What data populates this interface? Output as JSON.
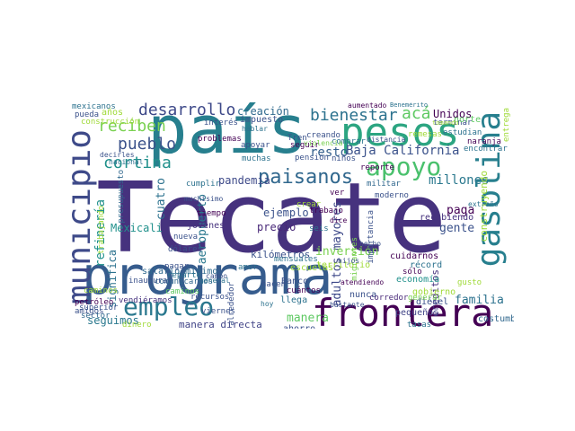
{
  "wordcloud": {
    "palette": {
      "dark_purple": "#440154",
      "indigo": "#46327e",
      "blue": "#365c8d",
      "teal": "#277f8e",
      "cyan": "#1fa187",
      "green": "#4ac16d",
      "light_green": "#a0da39",
      "yellow": "#d3e21b"
    },
    "words": [
      {
        "text": "Tecate",
        "color": "#46327e"
      },
      {
        "text": "programa",
        "color": "#365c8d"
      },
      {
        "text": "país",
        "color": "#277f8e"
      },
      {
        "text": "pesos",
        "color": "#2ca581"
      },
      {
        "text": "frontera",
        "color": "#440154"
      },
      {
        "text": "gasolina",
        "color": "#277f8e"
      },
      {
        "text": "municipio",
        "color": "#3e4a89"
      },
      {
        "text": "empleo",
        "color": "#2a788e"
      },
      {
        "text": "apoyo",
        "color": "#4ac16d"
      },
      {
        "text": "paisanos",
        "color": "#31688e"
      },
      {
        "text": "pueblo",
        "color": "#3b528b"
      },
      {
        "text": "cortina",
        "color": "#21918c"
      },
      {
        "text": "reciben",
        "color": "#7ad151"
      },
      {
        "text": "desarrollo",
        "color": "#3e4989"
      },
      {
        "text": "bienestar",
        "color": "#2c728e"
      },
      {
        "text": "acá",
        "color": "#5ec962"
      },
      {
        "text": "Baja California",
        "color": "#3b528b"
      },
      {
        "text": "resto",
        "color": "#35608d"
      },
      {
        "text": "millones",
        "color": "#2a788e"
      },
      {
        "text": "creación",
        "color": "#306a8e"
      },
      {
        "text": "impuesto",
        "color": "#3b528b"
      },
      {
        "text": "Unidos",
        "color": "#440154"
      },
      {
        "text": "años",
        "color": "#a0da39"
      },
      {
        "text": "pandemia",
        "color": "#3e4a89"
      },
      {
        "text": "refinería",
        "color": "#21918c"
      },
      {
        "text": "cuatro",
        "color": "#2c728e"
      },
      {
        "text": "aeropuerto",
        "color": "#2a788e"
      },
      {
        "text": "ejemplo",
        "color": "#3b528b"
      },
      {
        "text": "precio",
        "color": "#482878"
      },
      {
        "text": "adultos mayores",
        "color": "#3e4989"
      },
      {
        "text": "paga",
        "color": "#440154"
      },
      {
        "text": "gente",
        "color": "#3b528b"
      },
      {
        "text": "construyendo",
        "color": "#a0da39"
      },
      {
        "text": "créditos",
        "color": "#46327e"
      },
      {
        "text": "familia",
        "color": "#2c728e"
      },
      {
        "text": "Mexicali",
        "color": "#21918c"
      },
      {
        "text": "kilómetros",
        "color": "#3b528b"
      },
      {
        "text": "inversión",
        "color": "#7ad151"
      },
      {
        "text": "territorio",
        "color": "#a0da39"
      },
      {
        "text": "seguimos",
        "color": "#2a788e"
      },
      {
        "text": "manera",
        "color": "#5ec962"
      },
      {
        "text": "manera directa",
        "color": "#414487"
      },
      {
        "text": "ahorro",
        "color": "#3b528b"
      },
      {
        "text": "cuidarnos",
        "color": "#440154"
      },
      {
        "text": "récord",
        "color": "#2c728e"
      },
      {
        "text": "economía",
        "color": "#21918c"
      },
      {
        "text": "gobierno",
        "color": "#a0da39"
      },
      {
        "text": "diésel",
        "color": "#3b528b"
      },
      {
        "text": "pequeños",
        "color": "#414487"
      },
      {
        "text": "tasas",
        "color": "#2c728e"
      },
      {
        "text": "costumbre",
        "color": "#31688e"
      },
      {
        "text": "Madre",
        "color": "#440154"
      },
      {
        "text": "siempre",
        "color": "#3b528b"
      },
      {
        "text": "decidió",
        "color": "#46327e"
      },
      {
        "text": "dije",
        "color": "#440154"
      },
      {
        "text": "cerca",
        "color": "#3b528b"
      },
      {
        "text": "todas",
        "color": "#31688e"
      },
      {
        "text": "poder",
        "color": "#440154"
      },
      {
        "text": "significa",
        "color": "#2c728e"
      },
      {
        "text": "jóvenes",
        "color": "#46327e"
      },
      {
        "text": "nueva",
        "color": "#3b528b"
      },
      {
        "text": "dólares",
        "color": "#3b528b"
      },
      {
        "text": "salario mínimo",
        "color": "#306a8e"
      },
      {
        "text": "comunicarnos",
        "color": "#31688e"
      },
      {
        "text": "mensuales",
        "color": "#2c728e"
      },
      {
        "text": "escuelas",
        "color": "#a0da39"
      },
      {
        "text": "Banco",
        "color": "#3b528b"
      },
      {
        "text": "cuántos",
        "color": "#440154"
      },
      {
        "text": "llega",
        "color": "#2c728e"
      },
      {
        "text": "nunca",
        "color": "#3b528b"
      },
      {
        "text": "corredor",
        "color": "#482878"
      },
      {
        "text": "generar",
        "color": "#7ad151"
      },
      {
        "text": "viernes",
        "color": "#3b528b"
      },
      {
        "text": "caminos",
        "color": "#5ec962"
      },
      {
        "text": "recursos",
        "color": "#3b528b"
      },
      {
        "text": "vendiéramos",
        "color": "#46327e"
      },
      {
        "text": "superior",
        "color": "#3b528b"
      },
      {
        "text": "sector",
        "color": "#31688e"
      },
      {
        "text": "dinero",
        "color": "#a0da39"
      },
      {
        "text": "amigos",
        "color": "#3b528b"
      },
      {
        "text": "petróleo",
        "color": "#440154"
      },
      {
        "text": "pueda",
        "color": "#3b528b"
      },
      {
        "text": "mexicanos",
        "color": "#2c728e"
      },
      {
        "text": "construcción",
        "color": "#a0da39"
      },
      {
        "text": "interés",
        "color": "#3b528b"
      },
      {
        "text": "problemas",
        "color": "#440154"
      },
      {
        "text": "apoyar",
        "color": "#3b528b"
      },
      {
        "text": "muchas",
        "color": "#2c728e"
      },
      {
        "text": "Tren",
        "color": "#3b528b"
      },
      {
        "text": "seguir",
        "color": "#440154"
      },
      {
        "text": "pensión",
        "color": "#3b528b"
      },
      {
        "text": "comprar",
        "color": "#2c728e"
      },
      {
        "text": "creando",
        "color": "#3b528b"
      },
      {
        "text": "violencia",
        "color": "#7ad151"
      },
      {
        "text": "niños",
        "color": "#3b528b"
      },
      {
        "text": "reporte",
        "color": "#440154"
      },
      {
        "text": "militar",
        "color": "#31688e"
      },
      {
        "text": "moderno",
        "color": "#3b528b"
      },
      {
        "text": "remesas",
        "color": "#a0da39"
      },
      {
        "text": "naranja",
        "color": "#440154"
      },
      {
        "text": "encontrar",
        "color": "#2c728e"
      },
      {
        "text": "terminar",
        "color": "#3b528b"
      },
      {
        "text": "tomando",
        "color": "#a0da39"
      },
      {
        "text": "estudian",
        "color": "#2c728e"
      },
      {
        "text": "norte",
        "color": "#5ec962"
      },
      {
        "text": "entrega",
        "color": "#a0da39"
      },
      {
        "text": "recibiendo",
        "color": "#46327e"
      },
      {
        "text": "aumentado",
        "color": "#440154"
      },
      {
        "text": "Benemérito",
        "color": "#2c728e"
      },
      {
        "text": "muchísimo",
        "color": "#3b528b"
      },
      {
        "text": "tiempo",
        "color": "#440154"
      },
      {
        "text": "hacen",
        "color": "#3b528b"
      },
      {
        "text": "amor",
        "color": "#2c728e"
      },
      {
        "text": "sólo",
        "color": "#440154"
      },
      {
        "text": "hecho",
        "color": "#3b528b"
      },
      {
        "text": "seis",
        "color": "#2c728e"
      },
      {
        "text": "crear",
        "color": "#a0da39"
      },
      {
        "text": "trabajo",
        "color": "#440154"
      },
      {
        "text": "pagar",
        "color": "#3b528b"
      },
      {
        "text": "reparte",
        "color": "#2c728e"
      },
      {
        "text": "inaugurar",
        "color": "#3b528b"
      },
      {
        "text": "cumplir",
        "color": "#2c728e"
      },
      {
        "text": "atendiendo",
        "color": "#440154"
      },
      {
        "text": "gusto",
        "color": "#a0da39"
      },
      {
        "text": "hablar",
        "color": "#2c728e"
      },
      {
        "text": "distancia",
        "color": "#3b528b"
      },
      {
        "text": "decirles",
        "color": "#3b528b"
      },
      {
        "text": "nacional",
        "color": "#2c728e"
      },
      {
        "text": "presupuesto",
        "color": "#31688e"
      },
      {
        "text": "trabajando",
        "color": "#a0da39"
      },
      {
        "text": "alrededor",
        "color": "#3b528b"
      },
      {
        "text": "migrantes",
        "color": "#7ad151"
      },
      {
        "text": "importancia",
        "color": "#3b528b"
      },
      {
        "text": "hoy",
        "color": "#2c728e"
      },
      {
        "text": "ver",
        "color": "#440154"
      },
      {
        "text": "dice",
        "color": "#440154"
      },
      {
        "text": "bastante",
        "color": "#3b528b"
      },
      {
        "text": "extraño",
        "color": "#2c728e"
      },
      {
        "text": "hijos",
        "color": "#3b528b"
      },
      {
        "text": "caminos",
        "color": "#a0da39"
      },
      {
        "text": "campo",
        "color": "#3b528b"
      },
      {
        "text": "general",
        "color": "#2c728e"
      }
    ]
  }
}
